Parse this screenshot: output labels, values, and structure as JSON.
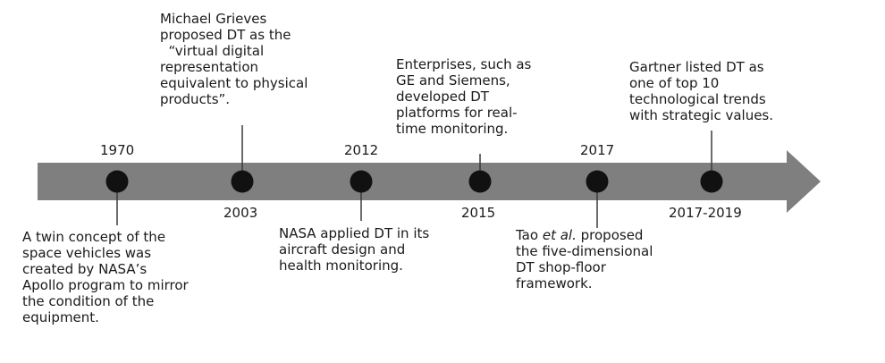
{
  "events": [
    {
      "year": "1970",
      "lines": [
        "A twin concept of the",
        "space vehicles was",
        "created by NASA’s",
        "Apollo program to mirror",
        "the condition of the",
        "equipment."
      ]
    },
    {
      "year": "2003",
      "lines": [
        "Michael Grieves",
        "proposed DT as the",
        "  “virtual digital",
        "representation",
        "equivalent to physical",
        "products”."
      ]
    },
    {
      "year": "2012",
      "lines": [
        "NASA applied DT in its",
        "aircraft design and",
        "health monitoring."
      ]
    },
    {
      "year": "2015",
      "lines": [
        "Enterprises, such as",
        "GE and Siemens,",
        "developed DT",
        "platforms for real-",
        "time monitoring."
      ]
    },
    {
      "year": "2017",
      "author": "Tao",
      "author_suffix": "et al.",
      "lines": [
        "the five-dimensional",
        "DT shop-floor",
        "framework."
      ],
      "first_line_rest": "proposed"
    },
    {
      "year": "2017-2019",
      "lines": [
        "Gartner listed DT as",
        "one of top 10",
        "technological trends",
        "with strategic values."
      ]
    }
  ],
  "colors": {
    "arrow": "#7f7f7f",
    "dot": "#111111",
    "connector": "#3a3a3a",
    "text": "#1a1a1a"
  }
}
